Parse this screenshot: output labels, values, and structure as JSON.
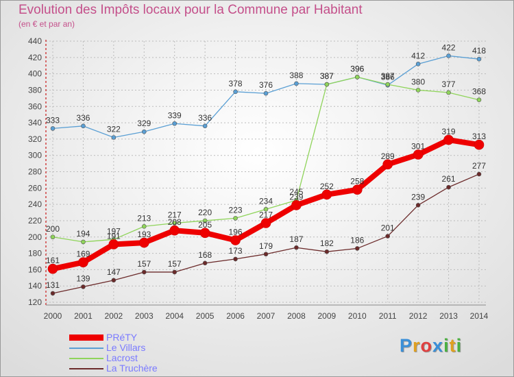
{
  "chart_data": {
    "type": "line",
    "title": "Evolution des Impôts locaux pour la Commune par Habitant",
    "subtitle": "(en € et par an)",
    "x": [
      "2000",
      "2001",
      "2002",
      "2003",
      "2004",
      "2005",
      "2006",
      "2007",
      "2008",
      "2009",
      "2010",
      "2011",
      "2012",
      "2013",
      "2014"
    ],
    "ylim": [
      120,
      440
    ],
    "yticks": [
      120,
      140,
      160,
      180,
      200,
      220,
      240,
      260,
      280,
      300,
      320,
      340,
      360,
      380,
      400,
      420,
      440
    ],
    "grid": true,
    "series": [
      {
        "name": "Le Villars",
        "color": "#5a9fd4",
        "values": [
          333,
          336,
          322,
          329,
          339,
          336,
          378,
          376,
          388,
          387,
          396,
          386,
          412,
          422,
          418
        ]
      },
      {
        "name": "Lacrost",
        "color": "#8fd45a",
        "values": [
          200,
          194,
          197,
          213,
          217,
          220,
          223,
          234,
          245,
          387,
          396,
          387,
          380,
          377,
          368
        ]
      },
      {
        "name": "La Truchère",
        "color": "#6b2a2a",
        "values": [
          131,
          139,
          147,
          157,
          157,
          168,
          173,
          179,
          187,
          182,
          186,
          201,
          239,
          261,
          277
        ]
      },
      {
        "name": "PRéTY",
        "color": "#ee0000",
        "values": [
          161,
          169,
          191,
          193,
          208,
          205,
          196,
          217,
          239,
          252,
          258,
          289,
          301,
          319,
          313
        ]
      }
    ]
  },
  "legend": {
    "items": [
      {
        "label": "PRéTY",
        "color": "#ee0000"
      },
      {
        "label": "Le Villars",
        "color": "#5a9fd4"
      },
      {
        "label": "Lacrost",
        "color": "#8fd45a"
      },
      {
        "label": "La Truchère",
        "color": "#6b2a2a"
      }
    ]
  },
  "logo": {
    "text": "Proxiti",
    "letters": [
      "P",
      "r",
      "o",
      "x",
      "i",
      "t",
      "i"
    ],
    "colors": [
      "#3a8fd8",
      "#e0a020",
      "#e04040",
      "#3a8fd8",
      "#4ab040",
      "#e0a020",
      "#4ab040"
    ]
  }
}
